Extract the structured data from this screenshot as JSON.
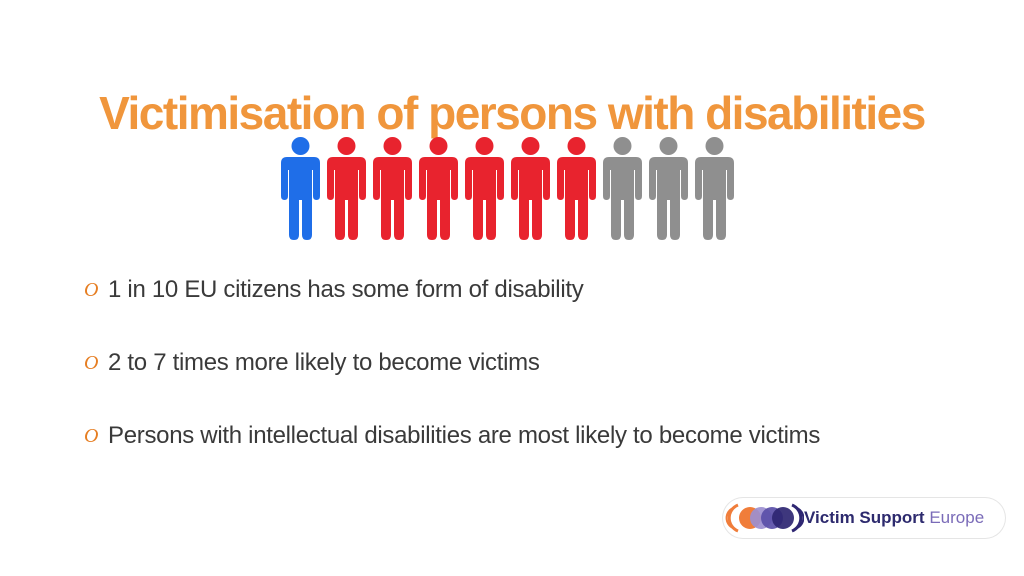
{
  "slide": {
    "title": "Victimisation of persons with disabilities",
    "title_color": "#f0963c",
    "people_icons": [
      {
        "icon": "person-icon",
        "color": "#1f6ee8"
      },
      {
        "icon": "person-icon",
        "color": "#e8232e"
      },
      {
        "icon": "person-icon",
        "color": "#e8232e"
      },
      {
        "icon": "person-icon",
        "color": "#e8232e"
      },
      {
        "icon": "person-icon",
        "color": "#e8232e"
      },
      {
        "icon": "person-icon",
        "color": "#e8232e"
      },
      {
        "icon": "person-icon",
        "color": "#e8232e"
      },
      {
        "icon": "person-icon",
        "color": "#8f8f8f"
      },
      {
        "icon": "person-icon",
        "color": "#8f8f8f"
      },
      {
        "icon": "person-icon",
        "color": "#8f8f8f"
      }
    ],
    "bullet_marker": "O",
    "bullet_color": "#e67e22",
    "bullets": [
      "1 in 10 EU citizens has some form of disability",
      "2 to 7 times more likely to become victims",
      "Persons with intellectual disabilities are most likely to become victims"
    ]
  },
  "logo": {
    "name_bold": "Victim Support",
    "name_light": "Europe",
    "bold_color": "#2d2a6e",
    "light_color": "#7a6bb8",
    "circle_colors": [
      "#f07d3a",
      "#9c8fd0",
      "#5a4fa8",
      "#2e2672"
    ]
  }
}
